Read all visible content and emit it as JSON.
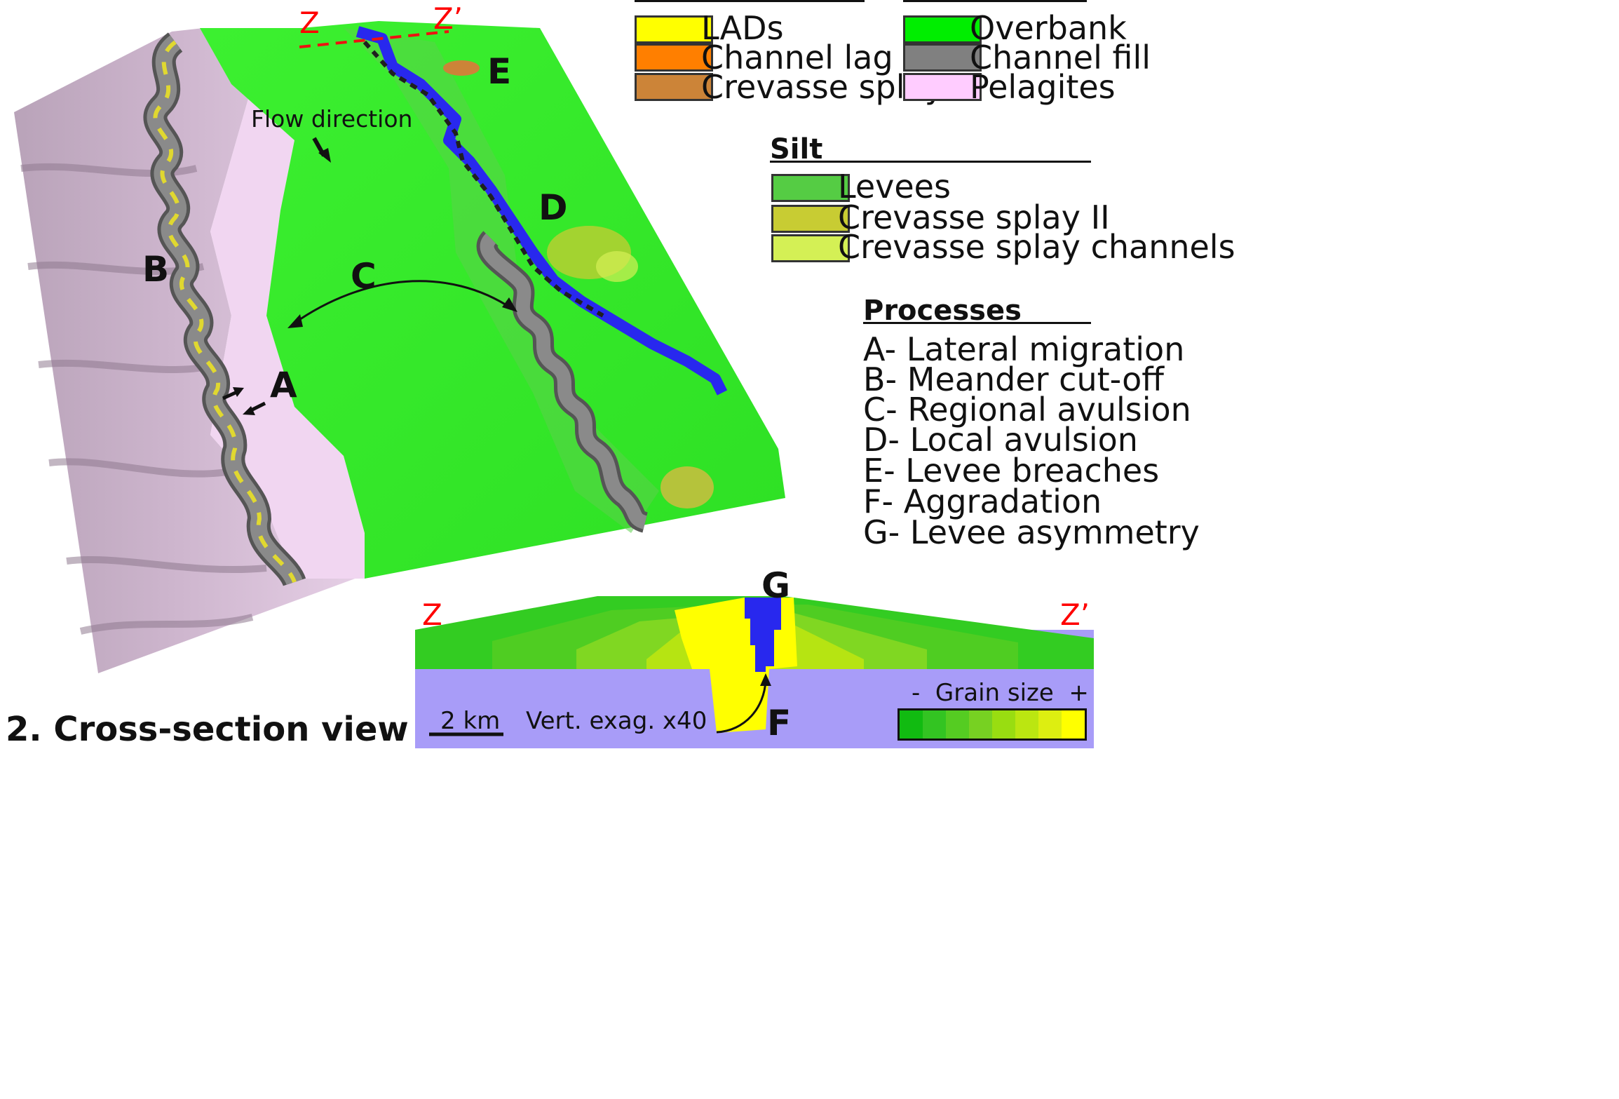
{
  "map": {
    "flow_label": "Flow direction",
    "section_start": "Z",
    "section_end": "Z’",
    "letters": [
      "A",
      "B",
      "C",
      "D",
      "E"
    ],
    "colors": {
      "pelagite_slope": "#c8b2c8",
      "overbank": "#33ee22",
      "active_channel": "#2828ee",
      "channel_fill": "#8a8a8a",
      "lads": "#e8e030",
      "section_line": "#ee1111"
    }
  },
  "legend_top": {
    "left": [
      {
        "label": "LADs",
        "color": "#ffff00"
      },
      {
        "label": "Channel lag",
        "color": "#ff7f00"
      },
      {
        "label": "Crevasse splay I",
        "color": "#cc8438"
      }
    ],
    "right": [
      {
        "label": "Overbank",
        "color": "#00ee00"
      },
      {
        "label": "Channel fill",
        "color": "#808080"
      },
      {
        "label": "Pelagites",
        "color": "#ffccff"
      }
    ]
  },
  "legend_silt": {
    "title": "Silt",
    "items": [
      {
        "label": "Levees",
        "color": "#55cc44"
      },
      {
        "label": "Crevasse splay II",
        "color": "#c8cc33"
      },
      {
        "label": "Crevasse splay channels",
        "color": "#d4f055"
      }
    ]
  },
  "processes": {
    "title": "Processes",
    "items": [
      {
        "code": "A-",
        "text": "Lateral migration"
      },
      {
        "code": "B-",
        "text": "Meander cut-off"
      },
      {
        "code": "C-",
        "text": "Regional avulsion"
      },
      {
        "code": "D-",
        "text": "Local avulsion"
      },
      {
        "code": "E-",
        "text": "Levee breaches"
      },
      {
        "code": "F-",
        "text": "Aggradation"
      },
      {
        "code": "G-",
        "text": "Levee asymmetry"
      }
    ]
  },
  "cross_section": {
    "title": "2. Cross-section view",
    "left_label": "Z",
    "right_label": "Z’",
    "letter_top": "G",
    "letter_bottom": "F",
    "scale_bar": "2 km",
    "vert_exag": "Vert. exag. x40",
    "grain_minus": "-",
    "grain_title": "Grain size",
    "grain_plus": "+",
    "grain_colors": [
      "#11bb11",
      "#33c422",
      "#55cc22",
      "#77d122",
      "#99dd11",
      "#bbe611",
      "#ddee11",
      "#ffff00"
    ],
    "colors": {
      "background": "#a89cf8",
      "levee": "#33cc22",
      "channel": "#2828ee",
      "sand": "#ffff00"
    }
  }
}
